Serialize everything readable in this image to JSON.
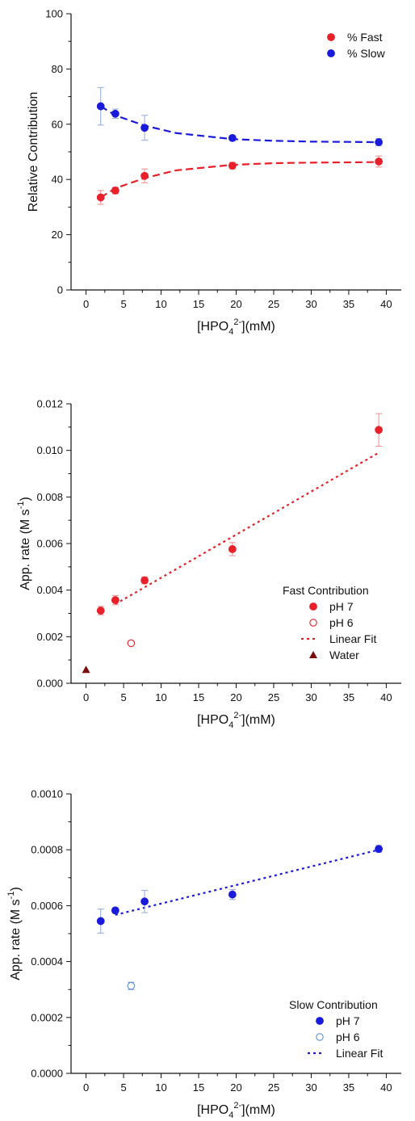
{
  "chart_data": [
    {
      "type": "scatter",
      "xlabel": "[HPO",
      "xlabel_sub": "4",
      "xlabel_sup": "2-",
      "xlabel_tail": "](mM)",
      "ylabel": "Relative Contribution",
      "xlim": [
        -2,
        42
      ],
      "ylim": [
        0,
        100
      ],
      "x_ticks": [
        0,
        5,
        10,
        15,
        20,
        25,
        30,
        35,
        40
      ],
      "x_tick_labels": [
        "0",
        "5",
        "10",
        "15",
        "20",
        "25",
        "30",
        "35",
        "40"
      ],
      "y_ticks": [
        0,
        20,
        40,
        60,
        80,
        100
      ],
      "y_tick_labels": [
        "0",
        "20",
        "40",
        "60",
        "80",
        "100"
      ],
      "grid": false,
      "legend_position": "top-right",
      "legend_title": "",
      "series": [
        {
          "name": "% Fast",
          "marker": "filled-circle",
          "color": "#e8202a",
          "x": [
            1.95,
            3.9,
            7.8,
            19.5,
            39
          ],
          "y": [
            33.5,
            36,
            41.3,
            45,
            46.5
          ],
          "err": [
            2.5,
            1.2,
            2.5,
            1.2,
            2.0
          ]
        },
        {
          "name": "% Slow",
          "marker": "filled-circle",
          "color": "#1a1adb",
          "x": [
            1.95,
            3.9,
            7.8,
            19.5,
            39
          ],
          "y": [
            66.5,
            63.8,
            58.7,
            55,
            53.5
          ],
          "err": [
            6.8,
            1.7,
            4.5,
            0.8,
            1.3
          ]
        },
        {
          "name": "",
          "line": "dashed-fit",
          "color": "#e8202a",
          "x": [
            1.95,
            3.9,
            7.8,
            12,
            19.5,
            25,
            30,
            35,
            39
          ],
          "y": [
            33.5,
            36.8,
            40.5,
            43.3,
            45.3,
            45.9,
            46.1,
            46.2,
            46.3
          ]
        },
        {
          "name": "",
          "line": "dashed-fit",
          "color": "#1a1adb",
          "x": [
            1.95,
            3.9,
            7.8,
            12,
            19.5,
            25,
            30,
            35,
            39
          ],
          "y": [
            66.5,
            63.2,
            59.5,
            56.8,
            54.6,
            54.0,
            53.7,
            53.6,
            53.5
          ]
        }
      ]
    },
    {
      "type": "scatter",
      "xlabel": "[HPO",
      "xlabel_sub": "4",
      "xlabel_sup": "2-",
      "xlabel_tail": "](mM)",
      "ylabel": "App. rate (M s",
      "ylabel_sup": "-1",
      "ylabel_tail": ")",
      "xlim": [
        -2,
        42
      ],
      "ylim": [
        0,
        0.012
      ],
      "x_ticks": [
        0,
        5,
        10,
        15,
        20,
        25,
        30,
        35,
        40
      ],
      "x_tick_labels": [
        "0",
        "5",
        "10",
        "15",
        "20",
        "25",
        "30",
        "35",
        "40"
      ],
      "y_ticks": [
        0,
        0.002,
        0.004,
        0.006,
        0.008,
        0.01,
        0.012
      ],
      "y_tick_labels": [
        "0.000",
        "0.002",
        "0.004",
        "0.006",
        "0.008",
        "0.010",
        "0.012"
      ],
      "grid": false,
      "legend_position": "bottom-right",
      "legend_title": "Fast Contribution",
      "series": [
        {
          "name": "pH 7",
          "marker": "filled-circle",
          "color": "#e8202a",
          "x": [
            1.95,
            3.9,
            7.8,
            19.5,
            39
          ],
          "y": [
            0.00312,
            0.00357,
            0.00442,
            0.00576,
            0.01088
          ],
          "err": [
            0.00018,
            0.0002,
            0.00015,
            0.00028,
            0.0007
          ]
        },
        {
          "name": "pH 6",
          "marker": "open-circle",
          "color": "#e8202a",
          "x": [
            6
          ],
          "y": [
            0.00172
          ],
          "err": [
            0
          ]
        },
        {
          "name": "Linear Fit",
          "line": "dotted-fit",
          "color": "#e8202a",
          "x": [
            3.9,
            39
          ],
          "y": [
            0.0034,
            0.0099
          ]
        },
        {
          "name": "Water",
          "marker": "filled-triangle",
          "color": "#7a0c0c",
          "x": [
            0
          ],
          "y": [
            0.00058
          ],
          "err": [
            0
          ]
        }
      ]
    },
    {
      "type": "scatter",
      "xlabel": "[HPO",
      "xlabel_sub": "4",
      "xlabel_sup": "2-",
      "xlabel_tail": "](mM)",
      "ylabel": "App. rate (M s",
      "ylabel_sup": "-1",
      "ylabel_tail": ")",
      "xlim": [
        -2,
        42
      ],
      "ylim": [
        0,
        0.001
      ],
      "x_ticks": [
        0,
        5,
        10,
        15,
        20,
        25,
        30,
        35,
        40
      ],
      "x_tick_labels": [
        "0",
        "5",
        "10",
        "15",
        "20",
        "25",
        "30",
        "35",
        "40"
      ],
      "y_ticks": [
        0,
        0.0002,
        0.0004,
        0.0006,
        0.0008,
        0.001
      ],
      "y_tick_labels": [
        "0.0000",
        "0.0002",
        "0.0004",
        "0.0006",
        "0.0008",
        "0.0010"
      ],
      "grid": false,
      "legend_position": "bottom-right",
      "legend_title": "Slow Contribution",
      "series": [
        {
          "name": "pH 7",
          "marker": "filled-circle",
          "color": "#1a1adb",
          "x": [
            1.95,
            3.9,
            7.8,
            19.5,
            39
          ],
          "y": [
            0.000545,
            0.000583,
            0.000615,
            0.00064,
            0.000803
          ],
          "err": [
            4.3e-05,
            1e-05,
            4e-05,
            1.8e-05,
            1.3e-05
          ]
        },
        {
          "name": "pH 6",
          "marker": "open-circle",
          "color": "#5b8ed6",
          "x": [
            6
          ],
          "y": [
            0.000313
          ],
          "err": [
            1.3e-05
          ]
        },
        {
          "name": "Linear Fit",
          "line": "dotted-fit",
          "color": "#1a1adb",
          "x": [
            3.9,
            39
          ],
          "y": [
            0.000567,
            0.0008
          ]
        }
      ]
    }
  ]
}
